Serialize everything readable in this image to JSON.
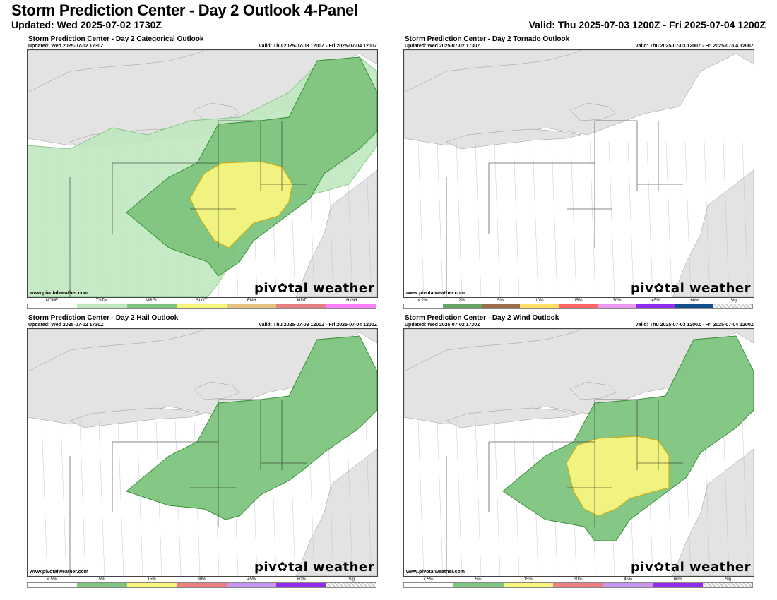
{
  "header": {
    "title": "Storm Prediction Center - Day 2 Outlook 4-Panel",
    "updated": "Updated: Wed 2025-07-02 1730Z",
    "valid": "Valid: Thu 2025-07-03 1200Z - Fri 2025-07-04 1200Z"
  },
  "panels": [
    {
      "title": "Storm Prediction Center - Day 2 Categorical Outlook",
      "updated": "Updated: Wed 2025-07-02 1730Z",
      "valid": "Valid: Thu 2025-07-03 1200Z - Fri 2025-07-04 1200Z",
      "credit": "www.pivotalweather.com",
      "logo": "piv✿tal weather",
      "legend": [
        {
          "label": "NONE",
          "color": "#ffffff"
        },
        {
          "label": "TSTM",
          "color": "#c0e8c0"
        },
        {
          "label": "MRGL",
          "color": "#7fc57f"
        },
        {
          "label": "SLGT",
          "color": "#f6f67f"
        },
        {
          "label": "ENH",
          "color": "#e6c27f"
        },
        {
          "label": "MDT",
          "color": "#e67f7f"
        },
        {
          "label": "HIGH",
          "color": "#ff7fff"
        }
      ]
    },
    {
      "title": "Storm Prediction Center - Day 2 Tornado Outlook",
      "updated": "Updated: Wed 2025-07-02 1730Z",
      "valid": "Valid: Thu 2025-07-03 1200Z - Fri 2025-07-04 1200Z",
      "credit": "www.pivotalweather.com",
      "logo": "piv✿tal weather",
      "legend": [
        {
          "label": "< 2%",
          "color": "#ffffff"
        },
        {
          "label": "2%",
          "color": "#66a366"
        },
        {
          "label": "5%",
          "color": "#9c6e4a"
        },
        {
          "label": "10%",
          "color": "#ffe066"
        },
        {
          "label": "15%",
          "color": "#ff6666"
        },
        {
          "label": "30%",
          "color": "#ee99ee"
        },
        {
          "label": "45%",
          "color": "#912cee"
        },
        {
          "label": "60%",
          "color": "#104e8b"
        },
        {
          "label": "Sig",
          "color": "sig"
        }
      ]
    },
    {
      "title": "Storm Prediction Center - Day 2 Hail Outlook",
      "updated": "Updated: Wed 2025-07-02 1730Z",
      "valid": "Valid: Thu 2025-07-03 1200Z - Fri 2025-07-04 1200Z",
      "credit": "www.pivotalweather.com",
      "logo": "piv✿tal weather",
      "legend": [
        {
          "label": "< 5%",
          "color": "#ffffff"
        },
        {
          "label": "5%",
          "color": "#7fc57f"
        },
        {
          "label": "15%",
          "color": "#f6f67f"
        },
        {
          "label": "30%",
          "color": "#f08080"
        },
        {
          "label": "45%",
          "color": "#c896f0"
        },
        {
          "label": "60%",
          "color": "#912cee"
        },
        {
          "label": "Sig",
          "color": "sig"
        }
      ]
    },
    {
      "title": "Storm Prediction Center - Day 2 Wind Outlook",
      "updated": "Updated: Wed 2025-07-02 1730Z",
      "valid": "Valid: Thu 2025-07-03 1200Z - Fri 2025-07-04 1200Z",
      "credit": "www.pivotalweather.com",
      "logo": "piv✿tal weather",
      "legend": [
        {
          "label": "< 5%",
          "color": "#ffffff"
        },
        {
          "label": "5%",
          "color": "#7fc57f"
        },
        {
          "label": "15%",
          "color": "#f6f67f"
        },
        {
          "label": "30%",
          "color": "#f08080"
        },
        {
          "label": "45%",
          "color": "#c896f0"
        },
        {
          "label": "60%",
          "color": "#912cee"
        },
        {
          "label": "Sig",
          "color": "sig"
        }
      ]
    }
  ],
  "colors": {
    "water": "#e3e3e3",
    "land": "#ffffff",
    "tstm": "#c0e8c0",
    "mrgl_fill": "#7fc57f",
    "mrgl_edge": "#2e8b2e",
    "slgt_fill": "#f6f67f",
    "slgt_edge": "#d8a800"
  }
}
